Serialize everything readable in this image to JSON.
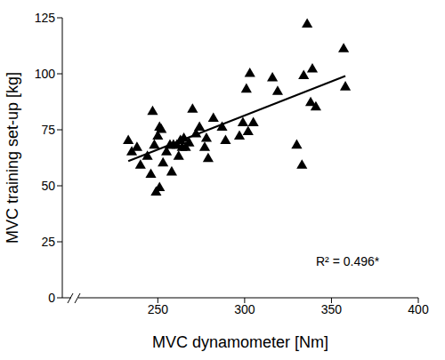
{
  "chart_data": {
    "type": "scatter",
    "x_label": "MVC dynamometer [Nm]",
    "y_label": "MVC training set-up [kg]",
    "annotation": "R² = 0.496*",
    "marker": "triangle",
    "color": "#000000",
    "grid": false,
    "x": [
      233,
      235,
      238,
      240,
      244,
      246,
      247,
      248,
      249,
      250,
      251,
      251,
      252,
      253,
      255,
      257,
      258,
      259,
      261,
      262,
      263,
      264,
      265,
      266,
      268,
      270,
      272,
      274,
      277,
      278,
      279,
      282,
      287,
      289,
      297,
      299,
      301,
      302,
      303,
      305,
      316,
      319,
      330,
      333,
      334,
      336,
      338,
      339,
      341,
      357,
      358
    ],
    "values": [
      70,
      65,
      67,
      59,
      63,
      55,
      83,
      68,
      47,
      72,
      76,
      49,
      75,
      60,
      65,
      68,
      56,
      68,
      68,
      63,
      70,
      67,
      71,
      67,
      69,
      84,
      73,
      76,
      67,
      71,
      62,
      80,
      76,
      70,
      72,
      78,
      93,
      74,
      100,
      78,
      98,
      92,
      68,
      59,
      99,
      122,
      87,
      102,
      85,
      111,
      94
    ],
    "fit": {
      "x": [
        233,
        358
      ],
      "values": [
        61,
        99
      ]
    },
    "xlim": [
      195,
      400
    ],
    "xticks": [
      250,
      300,
      350,
      400
    ],
    "ylim": [
      0,
      125
    ],
    "yticks": [
      0,
      25,
      50,
      75,
      100,
      125
    ]
  }
}
